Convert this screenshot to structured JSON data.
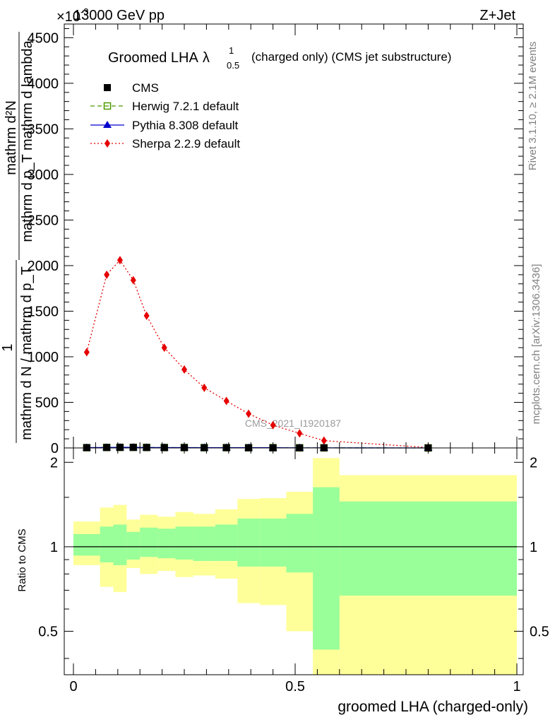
{
  "header": {
    "energy_label": "13000 GeV pp",
    "process_label": "Z+Jet",
    "exponent_label": "×10",
    "exponent_power": "-3"
  },
  "side_labels": {
    "rivet": "Rivet 3.1.10, ≥ 2.1M events",
    "mcplots": "mcplots.cern.ch [arXiv:1306.3436]"
  },
  "watermark": "CMS_2021_I1920187",
  "chart_data": [
    {
      "type": "line",
      "title": "Groomed LHA",
      "title_symbol": "λ",
      "title_sup": "1",
      "title_sub": "0.5",
      "title_suffix": "(charged only) (CMS jet substructure)",
      "ylabel_top": "mathrm d²N",
      "ylabel_mid": "mathrm d p_T mathrm d lambda",
      "ylabel_one": "1",
      "ylabel_bottom": "mathrm d N / mathrm d p_T",
      "xlim": [
        0,
        1
      ],
      "ylim": [
        0,
        4650
      ],
      "yticks": [
        0,
        500,
        1000,
        1500,
        2000,
        2500,
        3000,
        3500,
        4000,
        4500
      ],
      "ytick_labels": [
        "0",
        "500",
        "1000",
        "1500",
        "2000",
        "2500",
        "3000",
        "3500",
        "4000",
        "4500"
      ],
      "legend_placement": "top-left",
      "series": [
        {
          "name": "CMS",
          "color": "#000000",
          "marker": "square",
          "x": [
            0.03,
            0.075,
            0.105,
            0.135,
            0.165,
            0.205,
            0.25,
            0.295,
            0.345,
            0.395,
            0.45,
            0.51,
            0.565,
            0.8
          ],
          "y": [
            3,
            5,
            6,
            6,
            5,
            4,
            4,
            3,
            3,
            2,
            2,
            1,
            1,
            0.3
          ]
        },
        {
          "name": "Herwig 7.2.1 default",
          "color": "#4d9900",
          "marker": "open-square",
          "line": "dashed",
          "x": [
            0.03,
            0.075,
            0.105,
            0.135,
            0.165,
            0.205,
            0.25,
            0.295,
            0.345,
            0.395,
            0.45,
            0.51,
            0.565,
            0.8
          ],
          "y": [
            3,
            5,
            6,
            6,
            5,
            4,
            4,
            3,
            3,
            2,
            2,
            1,
            1,
            0.3
          ]
        },
        {
          "name": "Pythia 8.308 default",
          "color": "#0000cc",
          "marker": "triangle",
          "line": "solid",
          "x": [
            0.03,
            0.075,
            0.105,
            0.135,
            0.165,
            0.205,
            0.25,
            0.295,
            0.345,
            0.395,
            0.45,
            0.51,
            0.565,
            0.8
          ],
          "y": [
            3,
            5,
            6,
            6,
            5,
            4,
            4,
            3,
            3,
            2,
            2,
            1,
            1,
            0.3
          ]
        },
        {
          "name": "Sherpa 2.2.9 default",
          "color": "#e60000",
          "marker": "diamond",
          "line": "dotted",
          "x": [
            0.03,
            0.075,
            0.105,
            0.135,
            0.165,
            0.205,
            0.25,
            0.295,
            0.345,
            0.395,
            0.45,
            0.51,
            0.565,
            0.8
          ],
          "y": [
            1050,
            1900,
            2060,
            1840,
            1450,
            1100,
            860,
            660,
            515,
            375,
            250,
            160,
            80,
            5
          ]
        }
      ]
    },
    {
      "type": "area",
      "ylabel": "Ratio to CMS",
      "xlabel": "groomed LHA (charged-only)",
      "xlim": [
        0,
        1
      ],
      "ylim": [
        0.35,
        2.25
      ],
      "yticks": [
        0.5,
        1,
        2
      ],
      "ytick_labels": [
        "0.5",
        "1",
        "2"
      ],
      "xticks": [
        0,
        0.5,
        1
      ],
      "xtick_labels": [
        "0",
        "0.5",
        "1"
      ],
      "reference": 1,
      "colors": {
        "outer_band": "#ffff99",
        "inner_band": "#99ff99",
        "reference": "#000000"
      },
      "bins": [
        {
          "lo": 0.0,
          "hi": 0.06,
          "inner": [
            0.93,
            1.11
          ],
          "outer": [
            0.86,
            1.23
          ]
        },
        {
          "lo": 0.06,
          "hi": 0.09,
          "inner": [
            0.88,
            1.18
          ],
          "outer": [
            0.72,
            1.38
          ]
        },
        {
          "lo": 0.09,
          "hi": 0.12,
          "inner": [
            0.86,
            1.2
          ],
          "outer": [
            0.69,
            1.41
          ]
        },
        {
          "lo": 0.12,
          "hi": 0.15,
          "inner": [
            0.9,
            1.13
          ],
          "outer": [
            0.84,
            1.25
          ]
        },
        {
          "lo": 0.15,
          "hi": 0.19,
          "inner": [
            0.92,
            1.17
          ],
          "outer": [
            0.8,
            1.3
          ]
        },
        {
          "lo": 0.19,
          "hi": 0.23,
          "inner": [
            0.91,
            1.16
          ],
          "outer": [
            0.82,
            1.28
          ]
        },
        {
          "lo": 0.23,
          "hi": 0.27,
          "inner": [
            0.9,
            1.18
          ],
          "outer": [
            0.78,
            1.33
          ]
        },
        {
          "lo": 0.27,
          "hi": 0.32,
          "inner": [
            0.89,
            1.18
          ],
          "outer": [
            0.79,
            1.31
          ]
        },
        {
          "lo": 0.32,
          "hi": 0.37,
          "inner": [
            0.89,
            1.2
          ],
          "outer": [
            0.77,
            1.36
          ]
        },
        {
          "lo": 0.37,
          "hi": 0.42,
          "inner": [
            0.85,
            1.26
          ],
          "outer": [
            0.63,
            1.48
          ]
        },
        {
          "lo": 0.42,
          "hi": 0.48,
          "inner": [
            0.85,
            1.26
          ],
          "outer": [
            0.62,
            1.49
          ]
        },
        {
          "lo": 0.48,
          "hi": 0.54,
          "inner": [
            0.81,
            1.31
          ],
          "outer": [
            0.5,
            1.57
          ]
        },
        {
          "lo": 0.54,
          "hi": 0.6,
          "inner": [
            0.43,
            1.63
          ],
          "outer": [
            0.35,
            2.07
          ]
        },
        {
          "lo": 0.6,
          "hi": 1.0,
          "inner": [
            0.67,
            1.45
          ],
          "outer": [
            0.35,
            1.8
          ]
        }
      ]
    }
  ]
}
